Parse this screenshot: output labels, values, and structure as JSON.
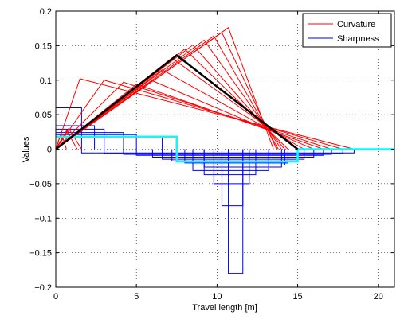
{
  "chart_data": {
    "type": "line",
    "title": "",
    "xlabel": "Travel length [m]",
    "ylabel": "Values",
    "xlim": [
      0,
      21
    ],
    "ylim": [
      -0.2,
      0.2
    ],
    "x_ticks": [
      0,
      5,
      10,
      15,
      20
    ],
    "x_tick_labels": [
      "0",
      "5",
      "10",
      "15",
      "20"
    ],
    "y_ticks": [
      -0.2,
      -0.15,
      -0.1,
      -0.05,
      0,
      0.05,
      0.1,
      0.15,
      0.2
    ],
    "y_tick_labels": [
      "−0.2",
      "−0.15",
      "−0.1",
      "−0.05",
      "0",
      "0.05",
      "0.1",
      "0.15",
      "0.2"
    ],
    "grid": true,
    "legend_position": "top-right",
    "legend": [
      {
        "label": "Curvature",
        "color": "#ff0000"
      },
      {
        "label": "Sharpness",
        "color": "#0000ff"
      }
    ],
    "curvature_color": "#ff0000",
    "sharpness_color": "#0000ff",
    "highlight_curvature_color": "#000000",
    "highlight_sharpness_color": "#00ffff",
    "curvature_series": [
      {
        "x": [
          0,
          0.33,
          0.66
        ],
        "y": [
          0,
          0.024,
          0
        ]
      },
      {
        "x": [
          0,
          0.67,
          1.33
        ],
        "y": [
          0,
          0.027,
          0
        ]
      },
      {
        "x": [
          0,
          0.8,
          1.6
        ],
        "y": [
          0,
          0.03,
          0
        ]
      },
      {
        "x": [
          0,
          1.5,
          18.5
        ],
        "y": [
          0,
          0.102,
          0
        ]
      },
      {
        "x": [
          0,
          3.0,
          17.8
        ],
        "y": [
          0,
          0.1,
          0
        ]
      },
      {
        "x": [
          0,
          4.2,
          17.1
        ],
        "y": [
          0,
          0.097,
          0
        ]
      },
      {
        "x": [
          0,
          5.0,
          16.6
        ],
        "y": [
          0,
          0.094,
          0
        ]
      },
      {
        "x": [
          0,
          6.0,
          16.0
        ],
        "y": [
          0,
          0.099,
          0
        ]
      },
      {
        "x": [
          0,
          6.6,
          15.4
        ],
        "y": [
          0,
          0.115,
          0
        ]
      },
      {
        "x": [
          0,
          7.2,
          15.0
        ],
        "y": [
          0,
          0.132,
          0
        ]
      },
      {
        "x": [
          0,
          8.0,
          14.4
        ],
        "y": [
          0,
          0.145,
          0
        ]
      },
      {
        "x": [
          0,
          8.5,
          14.2
        ],
        "y": [
          0,
          0.151,
          0
        ]
      },
      {
        "x": [
          0,
          9.2,
          14.0
        ],
        "y": [
          0,
          0.158,
          0
        ]
      },
      {
        "x": [
          0,
          9.8,
          13.8
        ],
        "y": [
          0,
          0.164,
          0
        ]
      },
      {
        "x": [
          0,
          10.3,
          13.7
        ],
        "y": [
          0,
          0.169,
          0
        ]
      },
      {
        "x": [
          0,
          10.7,
          13.5
        ],
        "y": [
          0,
          0.176,
          0
        ]
      }
    ],
    "highlight_curvature": {
      "x": [
        0,
        7.5,
        15
      ],
      "y": [
        0,
        0.136,
        0
      ]
    },
    "sharpness_rects": [
      {
        "x0": 0,
        "x1": 1.6,
        "y": 0.06
      },
      {
        "x0": 0,
        "x1": 2.4,
        "y": 0.034
      },
      {
        "x0": 0,
        "x1": 3.0,
        "y": 0.029
      },
      {
        "x0": 0,
        "x1": 4.2,
        "y": 0.024
      },
      {
        "x0": 0,
        "x1": 5.0,
        "y": 0.021
      },
      {
        "x0": 0,
        "x1": 6.6,
        "y": 0.018
      },
      {
        "x0": 1.6,
        "x1": 18.5,
        "y": -0.0055
      },
      {
        "x0": 3.0,
        "x1": 17.8,
        "y": -0.0065
      },
      {
        "x0": 4.2,
        "x1": 17.1,
        "y": -0.0075
      },
      {
        "x0": 5.0,
        "x1": 16.6,
        "y": -0.009
      },
      {
        "x0": 6.0,
        "x1": 16.0,
        "y": -0.0115
      },
      {
        "x0": 6.6,
        "x1": 15.4,
        "y": -0.0145
      },
      {
        "x0": 7.2,
        "x1": 15.0,
        "y": -0.017
      },
      {
        "x0": 8.0,
        "x1": 14.4,
        "y": -0.02
      },
      {
        "x0": 8.5,
        "x1": 14.2,
        "y": -0.023
      },
      {
        "x0": 9.2,
        "x1": 14.0,
        "y": -0.026
      },
      {
        "x0": 8.5,
        "x1": 13.2,
        "y": -0.031
      },
      {
        "x0": 9.2,
        "x1": 12.4,
        "y": -0.037
      },
      {
        "x0": 9.8,
        "x1": 12.0,
        "y": -0.05
      },
      {
        "x0": 10.3,
        "x1": 11.6,
        "y": -0.082
      },
      {
        "x0": 10.7,
        "x1": 11.6,
        "y": -0.18
      }
    ],
    "highlight_sharpness": {
      "x": [
        0,
        7.5,
        7.5,
        15,
        15,
        21
      ],
      "y": [
        0.018,
        0.018,
        -0.018,
        -0.018,
        0,
        0
      ]
    }
  }
}
